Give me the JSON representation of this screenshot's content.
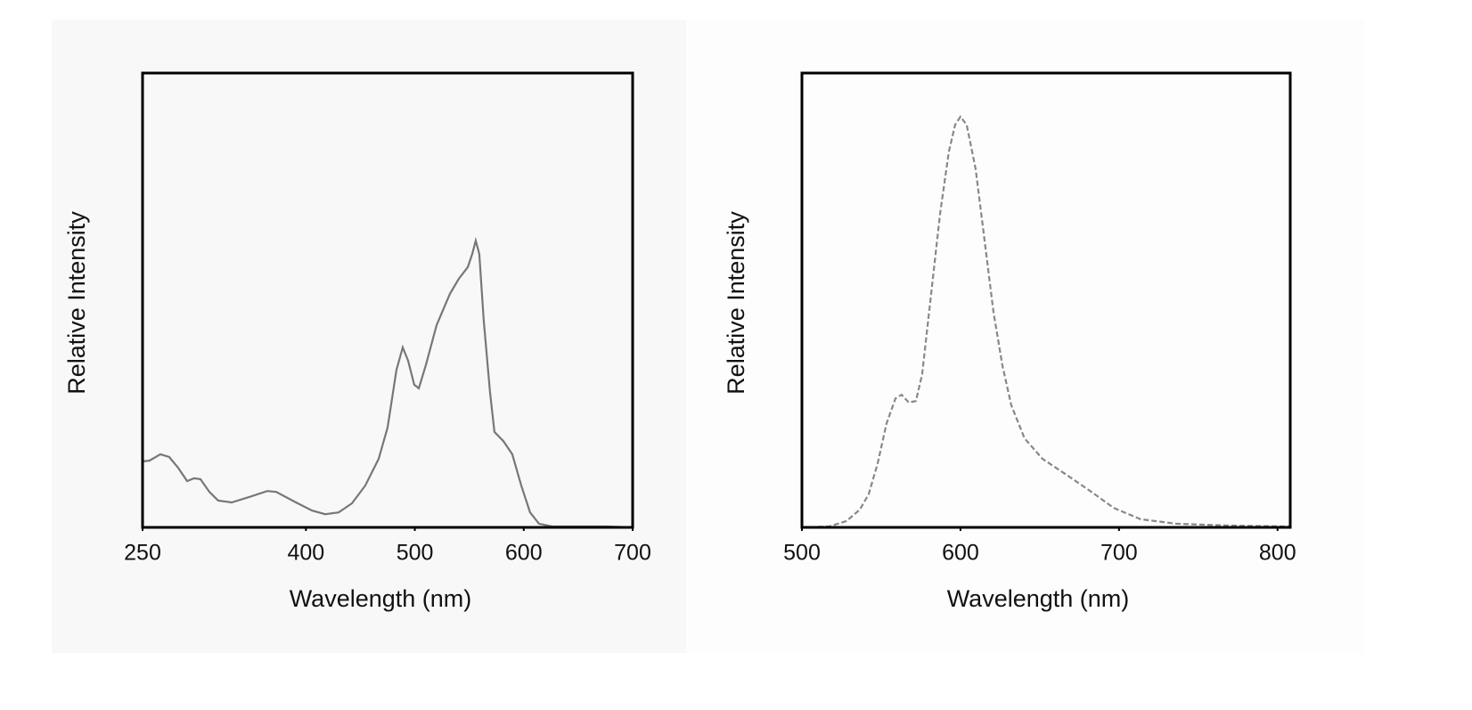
{
  "chart_data": [
    {
      "type": "line",
      "x_label": "Wavelength (nm)",
      "y_label": "Relative Intensity",
      "xlim": [
        250,
        700
      ],
      "ylim": [
        0,
        1
      ],
      "xticks": [
        250,
        400,
        500,
        600,
        700
      ],
      "line_style": "solid",
      "color": "#777777",
      "x": [
        250,
        256.5,
        266.4,
        274.5,
        282.7,
        290.9,
        297.4,
        303.2,
        311.4,
        319.5,
        331.8,
        348.2,
        364.5,
        372.7,
        389.1,
        405.5,
        417.7,
        430,
        442.3,
        454.5,
        466.8,
        475,
        483.2,
        488.9,
        493.8,
        499.5,
        503.6,
        510.1,
        520,
        532.2,
        540.4,
        548.6,
        552.7,
        555.9,
        559.2,
        563.3,
        569,
        573.1,
        581.3,
        589.5,
        597.7,
        605.8,
        614,
        626.3,
        650.8,
        675.4,
        700
      ],
      "values": [
        0.145,
        0.147,
        0.161,
        0.155,
        0.131,
        0.102,
        0.108,
        0.106,
        0.078,
        0.059,
        0.055,
        0.067,
        0.08,
        0.078,
        0.057,
        0.037,
        0.029,
        0.033,
        0.053,
        0.092,
        0.151,
        0.22,
        0.347,
        0.396,
        0.367,
        0.314,
        0.306,
        0.357,
        0.445,
        0.514,
        0.547,
        0.573,
        0.602,
        0.631,
        0.602,
        0.455,
        0.298,
        0.21,
        0.19,
        0.161,
        0.092,
        0.033,
        0.008,
        0.002,
        0.002,
        0.002,
        0
      ]
    },
    {
      "type": "line",
      "x_label": "Wavelength (nm)",
      "y_label": "Relative Intensity",
      "xlim": [
        500,
        808
      ],
      "ylim": [
        0,
        1
      ],
      "xticks": [
        500,
        600,
        700,
        800
      ],
      "line_style": "dashed",
      "color": "#888888",
      "x": [
        500,
        516.9,
        528.1,
        536.5,
        542.1,
        547.8,
        553.4,
        559,
        562.9,
        567.4,
        571.9,
        575.8,
        581.5,
        587.1,
        592.7,
        596.6,
        600,
        603.9,
        609.6,
        615.2,
        620.8,
        626.4,
        632,
        640.4,
        651.7,
        668.5,
        682.6,
        696.6,
        713.5,
        736,
        769.7,
        807.9
      ],
      "values": [
        0,
        0.002,
        0.014,
        0.039,
        0.073,
        0.141,
        0.229,
        0.284,
        0.292,
        0.275,
        0.278,
        0.337,
        0.514,
        0.69,
        0.827,
        0.886,
        0.904,
        0.886,
        0.788,
        0.631,
        0.475,
        0.357,
        0.269,
        0.196,
        0.151,
        0.112,
        0.078,
        0.043,
        0.018,
        0.008,
        0.004,
        0.002
      ]
    }
  ]
}
